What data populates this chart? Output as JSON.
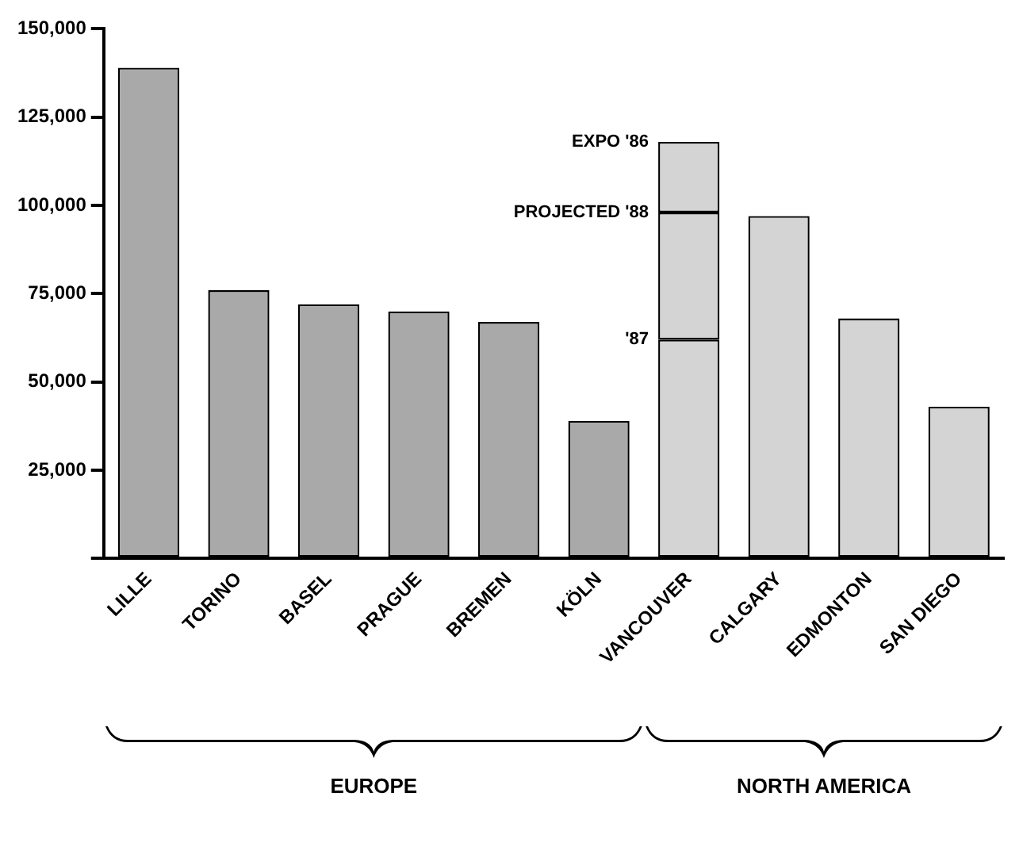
{
  "chart_data": {
    "type": "bar",
    "stacked": true,
    "categories": [
      "LILLE",
      "TORINO",
      "BASEL",
      "PRAGUE",
      "BREMEN",
      "KÖLN",
      "VANCOUVER",
      "CALGARY",
      "EDMONTON",
      "SAN DIEGO"
    ],
    "series": [
      {
        "colors": [
          "#a9a9a9",
          "#a9a9a9",
          "#a9a9a9",
          "#a9a9a9",
          "#a9a9a9",
          "#a9a9a9",
          "#d4d4d4",
          "#d4d4d4",
          "#d4d4d4",
          "#d4d4d4"
        ],
        "values": [
          139000,
          76000,
          72000,
          70000,
          67000,
          39000,
          62000,
          97000,
          68000,
          43000
        ]
      },
      {
        "color": "#d4d4d4",
        "values": [
          null,
          null,
          null,
          null,
          null,
          null,
          36000,
          null,
          null,
          null
        ]
      },
      {
        "color": "#d4d4d4",
        "values": [
          null,
          null,
          null,
          null,
          null,
          null,
          20000,
          null,
          null,
          null
        ]
      }
    ],
    "ylim": [
      0,
      150000
    ],
    "yticks": [
      {
        "value": 0,
        "label": null
      },
      {
        "value": 25000,
        "label": "25,000"
      },
      {
        "value": 50000,
        "label": "50,000"
      },
      {
        "value": 75000,
        "label": "75,000"
      },
      {
        "value": 100000,
        "label": "100,000"
      },
      {
        "value": 125000,
        "label": "125,000"
      },
      {
        "value": 150000,
        "label": "150,000"
      }
    ],
    "grid": false,
    "legend": false,
    "annotations": [
      {
        "text": "'87",
        "x": "VANCOUVER",
        "y": 62000
      },
      {
        "text": "PROJECTED '88",
        "x": "VANCOUVER",
        "y": 98000
      },
      {
        "text": "EXPO '86",
        "x": "VANCOUVER",
        "y": 118000
      },
      "EUROPE",
      "NORTH AMERICA"
    ]
  }
}
